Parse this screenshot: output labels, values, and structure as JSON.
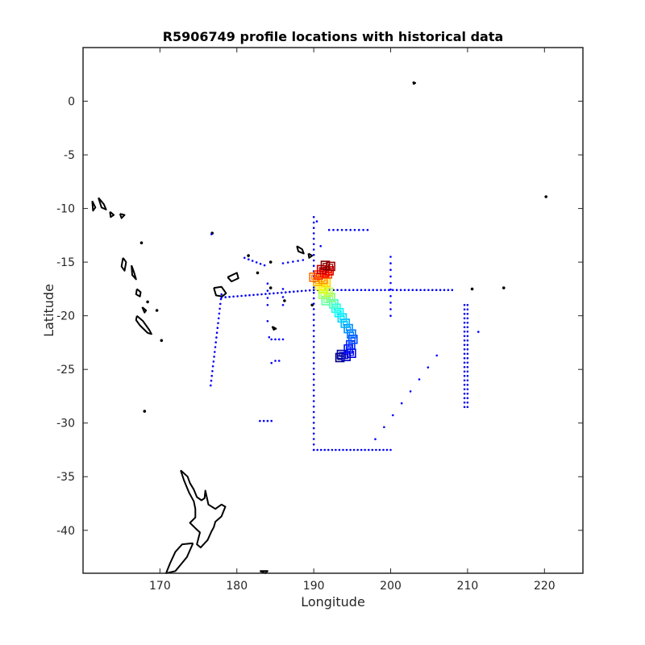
{
  "chart_data": {
    "type": "scatter",
    "title": "R5906749 profile locations with historical data",
    "xlabel": "Longitude",
    "ylabel": "Latitude",
    "xlim": [
      160,
      225
    ],
    "ylim": [
      -44,
      5
    ],
    "xticks": [
      170,
      180,
      190,
      200,
      210,
      220
    ],
    "yticks": [
      0,
      -5,
      -10,
      -15,
      -20,
      -25,
      -30,
      -35,
      -40
    ],
    "grid": false,
    "colors": {
      "historical": "#0000ff",
      "coast": "#000000",
      "colormap": "jet"
    },
    "historical_tracks": [
      {
        "from": [
          176.6,
          -26.5
        ],
        "to": [
          178.0,
          -18.0
        ],
        "n": 20
      },
      {
        "from": [
          178.0,
          -18.3
        ],
        "to": [
          190.0,
          -17.6
        ],
        "n": 24
      },
      {
        "from": [
          190.0,
          -17.6
        ],
        "to": [
          208.0,
          -17.6
        ],
        "n": 36
      },
      {
        "from": [
          190.0,
          -10.8
        ],
        "to": [
          190.0,
          -32.5
        ],
        "n": 44
      },
      {
        "from": [
          190.0,
          -32.5
        ],
        "to": [
          200.0,
          -32.5
        ],
        "n": 22
      },
      {
        "from": [
          192.0,
          -12.0
        ],
        "to": [
          197.0,
          -12.0
        ],
        "n": 10
      },
      {
        "from": [
          200.0,
          -14.5
        ],
        "to": [
          200.0,
          -20.0
        ],
        "n": 10
      },
      {
        "from": [
          184.0,
          -17.0
        ],
        "to": [
          184.0,
          -19.0
        ],
        "n": 4
      },
      {
        "from": [
          186.0,
          -17.5
        ],
        "to": [
          186.0,
          -19.0
        ],
        "n": 3
      },
      {
        "from": [
          184.5,
          -22.2
        ],
        "to": [
          186.0,
          -22.2
        ],
        "n": 4
      },
      {
        "from": [
          183.0,
          -29.8
        ],
        "to": [
          184.5,
          -29.8
        ],
        "n": 4
      },
      {
        "from": [
          209.6,
          -19.0
        ],
        "to": [
          209.6,
          -28.5
        ],
        "n": 24
      },
      {
        "from": [
          210.0,
          -19.0
        ],
        "to": [
          210.0,
          -28.5
        ],
        "n": 24
      },
      {
        "from": [
          198.0,
          -31.5
        ],
        "to": [
          206.0,
          -23.7
        ],
        "n": 8
      },
      {
        "from": [
          181.0,
          -14.6
        ],
        "to": [
          183.6,
          -15.3
        ],
        "n": 6
      },
      {
        "from": [
          186.0,
          -15.1
        ],
        "to": [
          188.6,
          -14.8
        ],
        "n": 5
      }
    ],
    "historical_points": [
      [
        176.7,
        -12.4
      ],
      [
        184.2,
        -22.0
      ],
      [
        184.5,
        -24.4
      ],
      [
        185.0,
        -24.2
      ],
      [
        185.5,
        -24.2
      ],
      [
        184.0,
        -20.5
      ],
      [
        211.4,
        -21.5
      ],
      [
        190.4,
        -11.2
      ],
      [
        190.9,
        -13.5
      ]
    ],
    "profile_locations": [
      [
        191.5,
        -15.3
      ],
      [
        192.2,
        -15.4
      ],
      [
        191.0,
        -15.7
      ],
      [
        192.0,
        -15.8
      ],
      [
        191.4,
        -16.0
      ],
      [
        190.6,
        -16.2
      ],
      [
        191.8,
        -16.1
      ],
      [
        190.0,
        -16.4
      ],
      [
        191.2,
        -16.6
      ],
      [
        190.5,
        -16.8
      ],
      [
        191.6,
        -16.9
      ],
      [
        190.8,
        -17.2
      ],
      [
        191.3,
        -17.5
      ],
      [
        191.9,
        -17.8
      ],
      [
        191.2,
        -18.0
      ],
      [
        192.2,
        -18.3
      ],
      [
        191.6,
        -18.6
      ],
      [
        192.6,
        -18.9
      ],
      [
        192.9,
        -19.3
      ],
      [
        193.3,
        -19.7
      ],
      [
        193.7,
        -20.2
      ],
      [
        194.1,
        -20.7
      ],
      [
        194.5,
        -21.2
      ],
      [
        194.9,
        -21.7
      ],
      [
        195.1,
        -22.2
      ],
      [
        194.8,
        -22.7
      ],
      [
        194.5,
        -23.1
      ],
      [
        194.9,
        -23.5
      ],
      [
        194.2,
        -23.8
      ],
      [
        193.6,
        -23.6
      ],
      [
        193.4,
        -23.9
      ]
    ],
    "coast_polylines": [
      [
        [
          172.7,
          -34.4
        ],
        [
          173.6,
          -35.0
        ],
        [
          173.9,
          -35.6
        ],
        [
          174.4,
          -36.2
        ],
        [
          174.8,
          -36.9
        ],
        [
          175.4,
          -37.2
        ],
        [
          175.8,
          -37.0
        ],
        [
          175.9,
          -36.3
        ],
        [
          176.3,
          -37.6
        ],
        [
          177.2,
          -38.0
        ],
        [
          178.0,
          -37.6
        ],
        [
          178.5,
          -37.8
        ],
        [
          178.0,
          -38.7
        ],
        [
          177.2,
          -39.2
        ],
        [
          177.0,
          -39.7
        ],
        [
          176.7,
          -40.1
        ],
        [
          176.2,
          -40.9
        ],
        [
          175.3,
          -41.6
        ],
        [
          174.8,
          -41.3
        ],
        [
          175.2,
          -40.2
        ],
        [
          174.6,
          -39.8
        ],
        [
          173.9,
          -39.3
        ],
        [
          174.6,
          -38.8
        ],
        [
          174.6,
          -38.0
        ],
        [
          174.4,
          -37.3
        ],
        [
          173.8,
          -36.5
        ],
        [
          173.1,
          -35.3
        ],
        [
          172.7,
          -34.4
        ]
      ],
      [
        [
          174.3,
          -41.2
        ],
        [
          174.0,
          -41.7
        ],
        [
          173.5,
          -42.5
        ],
        [
          172.7,
          -43.2
        ],
        [
          172.0,
          -43.8
        ],
        [
          170.8,
          -44.0
        ],
        [
          171.3,
          -43.1
        ],
        [
          172.0,
          -42.0
        ],
        [
          172.9,
          -41.3
        ],
        [
          174.3,
          -41.2
        ]
      ],
      [
        [
          167.0,
          -20.0
        ],
        [
          167.8,
          -20.5
        ],
        [
          168.6,
          -21.3
        ],
        [
          168.9,
          -21.7
        ],
        [
          168.4,
          -21.6
        ],
        [
          167.4,
          -20.9
        ],
        [
          166.9,
          -20.4
        ],
        [
          167.0,
          -20.0
        ]
      ],
      [
        [
          165.2,
          -14.6
        ],
        [
          165.6,
          -15.0
        ],
        [
          165.4,
          -15.8
        ],
        [
          165.0,
          -15.4
        ],
        [
          165.2,
          -14.6
        ]
      ],
      [
        [
          166.3,
          -15.3
        ],
        [
          166.6,
          -15.9
        ],
        [
          166.9,
          -16.6
        ],
        [
          166.4,
          -16.2
        ],
        [
          166.3,
          -15.3
        ]
      ],
      [
        [
          167.0,
          -17.5
        ],
        [
          167.5,
          -17.8
        ],
        [
          167.4,
          -18.2
        ],
        [
          166.9,
          -18.0
        ],
        [
          167.0,
          -17.5
        ]
      ],
      [
        [
          167.7,
          -19.2
        ],
        [
          168.2,
          -19.5
        ],
        [
          168.0,
          -19.7
        ],
        [
          167.7,
          -19.2
        ]
      ],
      [
        [
          162.0,
          -9.0
        ],
        [
          162.7,
          -9.6
        ],
        [
          163.0,
          -10.1
        ],
        [
          162.4,
          -9.9
        ],
        [
          162.0,
          -9.0
        ]
      ],
      [
        [
          161.2,
          -9.3
        ],
        [
          161.6,
          -9.9
        ],
        [
          161.3,
          -10.2
        ],
        [
          161.2,
          -9.3
        ]
      ],
      [
        [
          163.5,
          -10.3
        ],
        [
          164.0,
          -10.6
        ],
        [
          163.6,
          -10.8
        ],
        [
          163.5,
          -10.3
        ]
      ],
      [
        [
          164.8,
          -10.5
        ],
        [
          165.4,
          -10.6
        ],
        [
          165.0,
          -10.9
        ],
        [
          164.8,
          -10.5
        ]
      ],
      [
        [
          177.0,
          -17.4
        ],
        [
          178.0,
          -17.3
        ],
        [
          178.6,
          -17.9
        ],
        [
          178.1,
          -18.2
        ],
        [
          177.3,
          -18.1
        ],
        [
          177.0,
          -17.4
        ]
      ],
      [
        [
          178.8,
          -16.4
        ],
        [
          180.0,
          -16.0
        ],
        [
          180.2,
          -16.5
        ],
        [
          179.3,
          -16.8
        ],
        [
          178.8,
          -16.4
        ]
      ],
      [
        [
          187.8,
          -13.5
        ],
        [
          188.5,
          -13.8
        ],
        [
          188.7,
          -14.2
        ],
        [
          188.0,
          -14.0
        ],
        [
          187.8,
          -13.5
        ]
      ],
      [
        [
          189.3,
          -14.2
        ],
        [
          189.8,
          -14.4
        ],
        [
          189.4,
          -14.6
        ],
        [
          189.3,
          -14.2
        ]
      ],
      [
        [
          202.9,
          1.8
        ],
        [
          203.2,
          1.7
        ],
        [
          203.0,
          1.6
        ],
        [
          202.9,
          1.8
        ]
      ],
      [
        [
          184.6,
          -21.0
        ],
        [
          185.1,
          -21.2
        ],
        [
          184.8,
          -21.3
        ],
        [
          184.6,
          -21.0
        ]
      ],
      [
        [
          183.0,
          -43.8
        ],
        [
          184.0,
          -43.8
        ],
        [
          183.7,
          -44.0
        ],
        [
          183.0,
          -43.8
        ]
      ]
    ],
    "coast_dots": [
      [
        168.0,
        -28.9
      ],
      [
        220.2,
        -8.9
      ],
      [
        210.6,
        -17.5
      ],
      [
        214.7,
        -17.4
      ],
      [
        176.8,
        -12.3
      ],
      [
        182.7,
        -16.0
      ],
      [
        184.4,
        -17.4
      ],
      [
        186.2,
        -18.6
      ],
      [
        189.8,
        -19.0
      ],
      [
        184.4,
        -15.0
      ],
      [
        181.5,
        -14.4
      ],
      [
        169.6,
        -19.5
      ],
      [
        168.4,
        -18.7
      ],
      [
        170.2,
        -22.3
      ],
      [
        167.6,
        -13.2
      ]
    ]
  }
}
